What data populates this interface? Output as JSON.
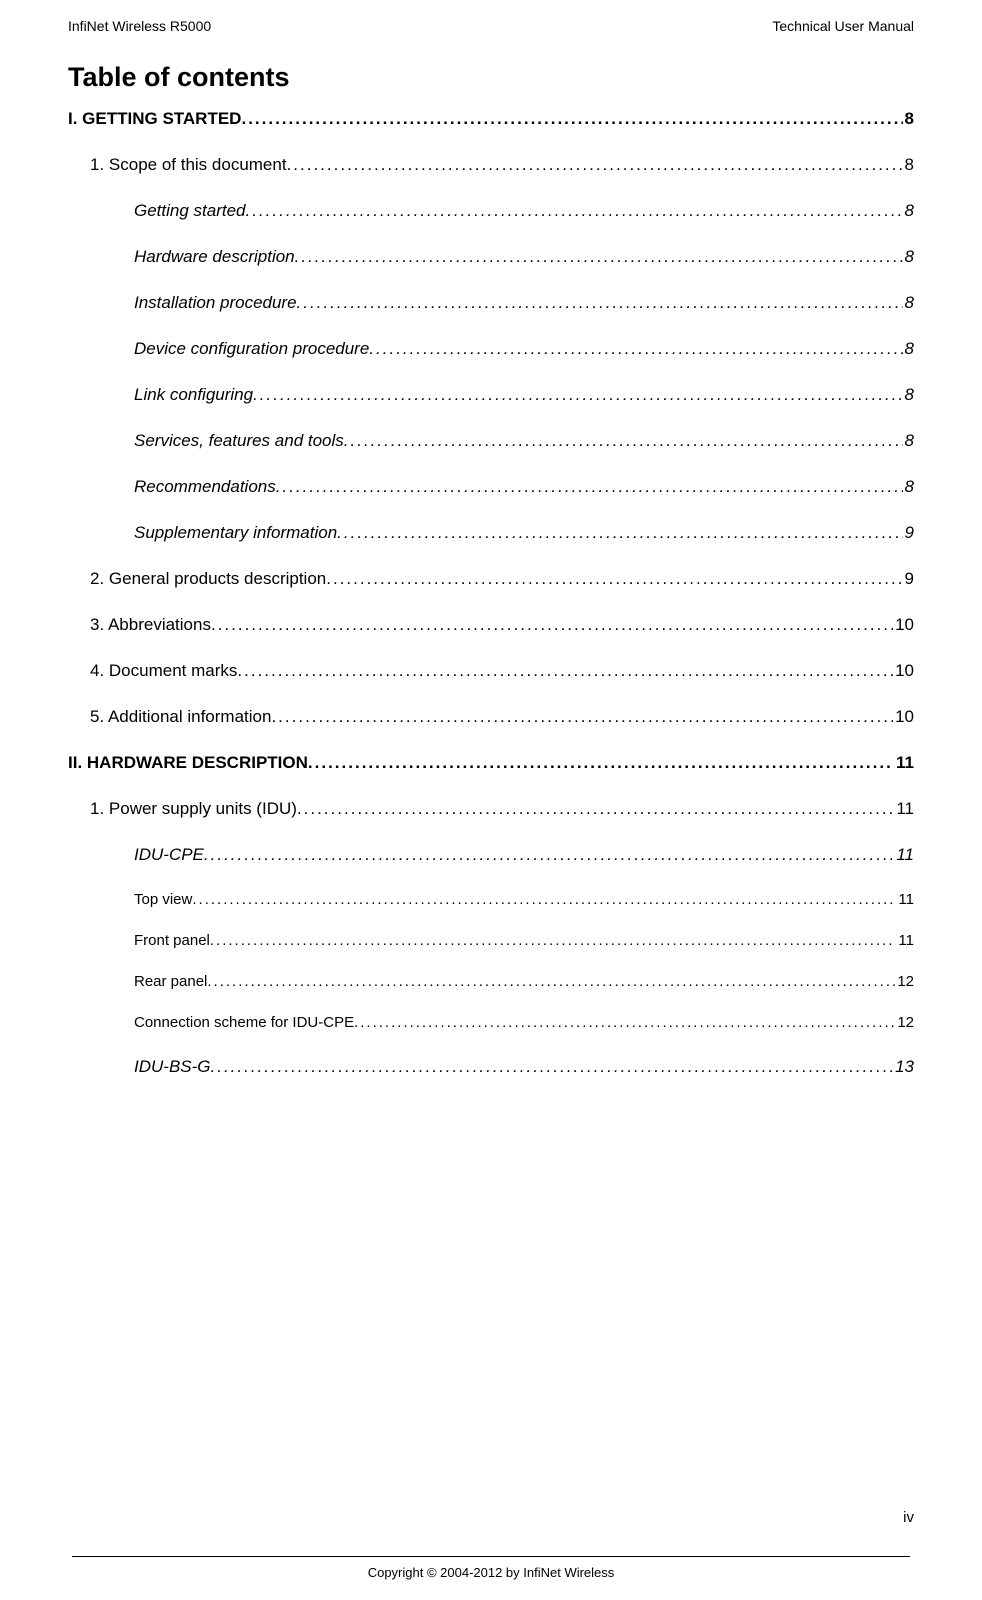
{
  "header": {
    "left": "InfiNet Wireless R5000",
    "right": "Technical User Manual"
  },
  "title": "Table of contents",
  "entries": [
    {
      "level": 1,
      "label": "I. GETTING STARTED ",
      "page": "8"
    },
    {
      "level": 2,
      "label": "1. Scope of this document ",
      "page": "8"
    },
    {
      "level": 3,
      "label": "Getting started",
      "page": "8"
    },
    {
      "level": 3,
      "label": "Hardware description",
      "page": "8"
    },
    {
      "level": 3,
      "label": "Installation procedure ",
      "page": "8"
    },
    {
      "level": 3,
      "label": "Device configuration procedure ",
      "page": "8"
    },
    {
      "level": 3,
      "label": "Link configuring",
      "page": "8"
    },
    {
      "level": 3,
      "label": "Services, features and tools",
      "page": "8"
    },
    {
      "level": 3,
      "label": "Recommendations ",
      "page": "8"
    },
    {
      "level": 3,
      "label": "Supplementary information ",
      "page": "9"
    },
    {
      "level": 2,
      "label": "2. General products description",
      "page": "9"
    },
    {
      "level": 2,
      "label": "3. Abbreviations ",
      "page": "10"
    },
    {
      "level": 2,
      "label": "4. Document marks ",
      "page": "10"
    },
    {
      "level": 2,
      "label": "5. Additional information",
      "page": "10"
    },
    {
      "level": 1,
      "label": "II. HARDWARE DESCRIPTION",
      "page": "11"
    },
    {
      "level": 2,
      "label": "1. Power supply units (IDU)",
      "page": "11"
    },
    {
      "level": 3,
      "label": "IDU-CPE",
      "page": "11"
    },
    {
      "level": 4,
      "label": "Top view",
      "page": "11"
    },
    {
      "level": 4,
      "label": "Front panel ",
      "page": "11"
    },
    {
      "level": 4,
      "label": "Rear panel ",
      "page": "12"
    },
    {
      "level": 4,
      "label": "Connection scheme for IDU-CPE",
      "page": "12"
    },
    {
      "level": 3,
      "label": "IDU-BS-G",
      "page": "13"
    }
  ],
  "footer": {
    "pageNumber": "iv",
    "copyright": "Copyright © 2004-2012 by InfiNet Wireless"
  },
  "style": {
    "background": "#ffffff",
    "text": "#000000",
    "leaderChar": "."
  }
}
